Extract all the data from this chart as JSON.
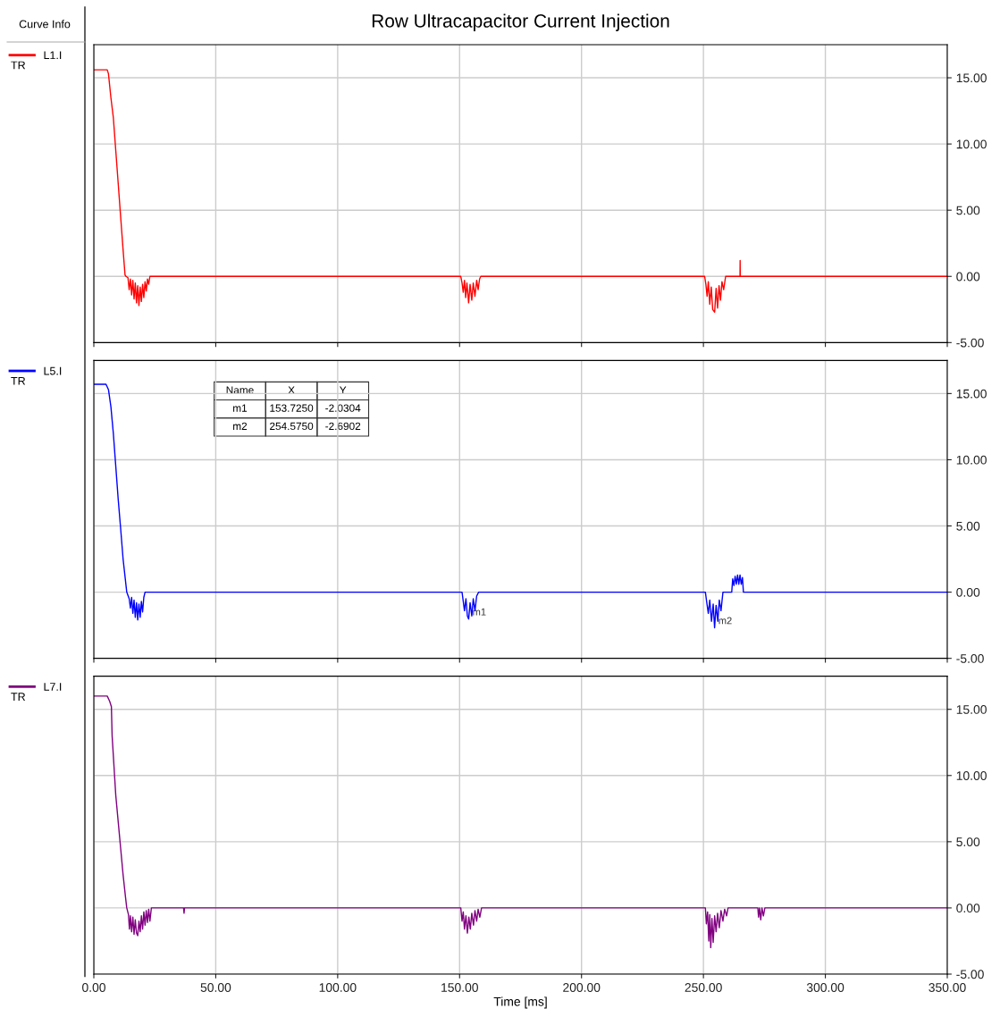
{
  "chart_data": [
    {
      "type": "line",
      "title": "Row Ultracapacitor Current Injection",
      "legend_title": "Curve Info",
      "legend": "left",
      "grid": true,
      "tick_labels": "y",
      "xlim": [
        0,
        350
      ],
      "xticks": [
        {
          "value": 0,
          "label": null
        },
        {
          "value": 50,
          "label": null
        },
        {
          "value": 100,
          "label": null
        },
        {
          "value": 150,
          "label": null
        },
        {
          "value": 200,
          "label": null
        },
        {
          "value": 250,
          "label": null
        },
        {
          "value": 300,
          "label": null
        },
        {
          "value": 350,
          "label": null
        }
      ],
      "ylim": [
        -5,
        17.5
      ],
      "yticks": [
        {
          "value": -5,
          "label": "-5.00"
        },
        {
          "value": 0,
          "label": "0.00"
        },
        {
          "value": 5,
          "label": "5.00"
        },
        {
          "value": 10,
          "label": "10.00"
        },
        {
          "value": 15,
          "label": "15.00"
        }
      ],
      "annotations": [
        "TR"
      ],
      "series": [
        {
          "name": "L1.I",
          "color": "#ff0000",
          "x": [
            0,
            5.5,
            6,
            7,
            8,
            9,
            10,
            11,
            12,
            12.8,
            13.2,
            14,
            14.5,
            15,
            15.5,
            16,
            16.5,
            17,
            17.5,
            18,
            18.5,
            19,
            19.5,
            20,
            20.5,
            21,
            21.5,
            22,
            22.5,
            23,
            150.5,
            151,
            151.5,
            152,
            152.5,
            153,
            153.7,
            154.3,
            155,
            155.6,
            156.3,
            157,
            157.6,
            158.2,
            158.7,
            250.5,
            251,
            251.5,
            252,
            252.6,
            253.2,
            253.8,
            254.6,
            255.2,
            255.8,
            256.4,
            257,
            257.6,
            258.3,
            259.1,
            265,
            265.05,
            265.1,
            350
          ],
          "values": [
            15.6,
            15.6,
            15.3,
            13.5,
            12.0,
            9.5,
            7,
            4.5,
            2.0,
            0.1,
            0,
            -0.1,
            -1.0,
            -0.2,
            -1.4,
            -0.3,
            -1.7,
            -0.5,
            -2.0,
            -0.7,
            -2.2,
            -0.8,
            -1.9,
            -0.6,
            -1.6,
            -0.4,
            -1.1,
            -0.2,
            -0.6,
            0,
            0,
            -0.5,
            -1.2,
            -0.3,
            -1.6,
            -0.5,
            -2.0,
            -0.6,
            -1.8,
            -0.5,
            -1.5,
            -0.3,
            -1.0,
            -0.2,
            0,
            0,
            -0.6,
            -1.5,
            -0.4,
            -2.1,
            -0.8,
            -2.5,
            -2.7,
            -0.9,
            -2.4,
            -0.7,
            -1.8,
            -0.4,
            -1.0,
            0,
            0,
            1.2,
            0,
            0
          ]
        }
      ]
    },
    {
      "type": "line",
      "legend": "left",
      "grid": true,
      "tick_labels": "y",
      "xlim": [
        0,
        350
      ],
      "xticks": [
        {
          "value": 0,
          "label": null
        },
        {
          "value": 50,
          "label": null
        },
        {
          "value": 100,
          "label": null
        },
        {
          "value": 150,
          "label": null
        },
        {
          "value": 200,
          "label": null
        },
        {
          "value": 250,
          "label": null
        },
        {
          "value": 300,
          "label": null
        },
        {
          "value": 350,
          "label": null
        }
      ],
      "ylim": [
        -5,
        17.5
      ],
      "yticks": [
        {
          "value": -5,
          "label": "-5.00"
        },
        {
          "value": 0,
          "label": "0.00"
        },
        {
          "value": 5,
          "label": "5.00"
        },
        {
          "value": 10,
          "label": "10.00"
        },
        {
          "value": 15,
          "label": "15.00"
        }
      ],
      "annotations": [
        "TR",
        "Name",
        "X",
        "Y",
        "m1",
        "153.7250",
        "-2.0304",
        "m2",
        "254.5750",
        "-2.6902",
        {
          "text": "m1",
          "x": 153.725,
          "y": -2.0304
        },
        {
          "text": "m2",
          "x": 254.575,
          "y": -2.6902
        }
      ],
      "series": [
        {
          "name": "L5.I",
          "color": "#0000ff",
          "x": [
            0,
            5,
            6,
            7,
            8,
            9,
            10,
            11,
            12,
            13.5,
            14.5,
            15,
            15.5,
            16,
            16.5,
            17,
            17.5,
            18,
            18.5,
            19,
            19.5,
            20,
            20.5,
            21,
            151,
            151.5,
            152,
            152.6,
            153.2,
            153.725,
            154.3,
            155,
            155.6,
            156.3,
            157,
            157.8,
            250.8,
            251.3,
            252,
            252.6,
            253.3,
            254,
            254.575,
            255.2,
            255.9,
            256.5,
            257.2,
            258,
            261.6,
            262,
            262.5,
            263,
            263.5,
            264,
            264.5,
            265,
            265.5,
            266,
            266.4,
            350
          ],
          "values": [
            15.7,
            15.7,
            15.3,
            14,
            12,
            9.5,
            7,
            4.8,
            2.5,
            0,
            -0.5,
            -1.2,
            -0.4,
            -1.6,
            -0.6,
            -1.9,
            -0.8,
            -2.1,
            -0.9,
            -1.9,
            -0.7,
            -1.5,
            -0.4,
            0,
            0,
            -0.7,
            -1.4,
            -0.5,
            -1.8,
            -2.03,
            -0.8,
            -1.8,
            -0.5,
            -1.4,
            -0.3,
            0,
            0,
            -0.7,
            -1.6,
            -0.6,
            -2.2,
            -0.9,
            -2.69,
            -1.0,
            -2.2,
            -0.6,
            -1.4,
            0,
            0,
            1.0,
            0.5,
            1.2,
            0.6,
            1.3,
            0.6,
            1.3,
            0.6,
            1.1,
            0,
            0
          ]
        }
      ]
    },
    {
      "type": "line",
      "legend": "left",
      "grid": true,
      "xlabel": "Time [ms]",
      "xlim": [
        0,
        350
      ],
      "xticks": [
        {
          "value": 0,
          "label": "0.00"
        },
        {
          "value": 50,
          "label": "50.00"
        },
        {
          "value": 100,
          "label": "100.00"
        },
        {
          "value": 150,
          "label": "150.00"
        },
        {
          "value": 200,
          "label": "200.00"
        },
        {
          "value": 250,
          "label": "250.00"
        },
        {
          "value": 300,
          "label": "300.00"
        },
        {
          "value": 350,
          "label": "350.00"
        }
      ],
      "ylim": [
        -5,
        17.5
      ],
      "yticks": [
        {
          "value": -5,
          "label": "-5.00"
        },
        {
          "value": 0,
          "label": "0.00"
        },
        {
          "value": 5,
          "label": "5.00"
        },
        {
          "value": 10,
          "label": "10.00"
        },
        {
          "value": 15,
          "label": "15.00"
        }
      ],
      "annotations": [
        "TR"
      ],
      "series": [
        {
          "name": "L7.I",
          "color": "#800080",
          "x": [
            0,
            5.5,
            6.5,
            7.2,
            7.5,
            8,
            9,
            10,
            11,
            12,
            13,
            13.5,
            14.2,
            14.6,
            15,
            15.5,
            16,
            16.5,
            17,
            17.5,
            18,
            18.5,
            19,
            19.5,
            20,
            20.5,
            21,
            21.5,
            22,
            22.5,
            23,
            23.6,
            36.8,
            37,
            37.2,
            150.5,
            151,
            151.5,
            152,
            152.6,
            153.2,
            153.8,
            154.4,
            155,
            155.7,
            156.3,
            157,
            157.6,
            158.3,
            159,
            250.8,
            251.2,
            251.7,
            252.2,
            252.6,
            253,
            253.5,
            254,
            254.6,
            255.2,
            255.8,
            256.5,
            257.2,
            258,
            258.7,
            259.5,
            260.1,
            272.3,
            272.6,
            273,
            273.5,
            274,
            274.6,
            275.2,
            350
          ],
          "values": [
            16.0,
            16.0,
            15.6,
            15.2,
            13,
            11.5,
            8.5,
            6.5,
            4.5,
            2.5,
            0.8,
            0,
            -0.5,
            -1.6,
            -0.6,
            -1.8,
            -0.7,
            -2.0,
            -0.9,
            -1.9,
            -2.1,
            -1.0,
            -1.8,
            -0.6,
            -1.6,
            -0.3,
            -1.3,
            -0.2,
            -1.1,
            -0.1,
            -1.0,
            0,
            0,
            -0.4,
            0,
            0,
            -1.0,
            -0.3,
            -1.6,
            -0.6,
            -1.9,
            -0.7,
            -1.6,
            -0.4,
            -1.3,
            -0.2,
            -1.0,
            -0.1,
            -0.7,
            0,
            0,
            -1.2,
            -0.3,
            -2.5,
            -0.5,
            -3.0,
            -0.8,
            -2.6,
            -0.6,
            -1.8,
            -0.4,
            -1.5,
            -0.2,
            -1.0,
            -0.1,
            -0.6,
            0,
            0,
            -0.7,
            0,
            -0.9,
            0,
            -0.6,
            0,
            0
          ]
        }
      ]
    }
  ]
}
